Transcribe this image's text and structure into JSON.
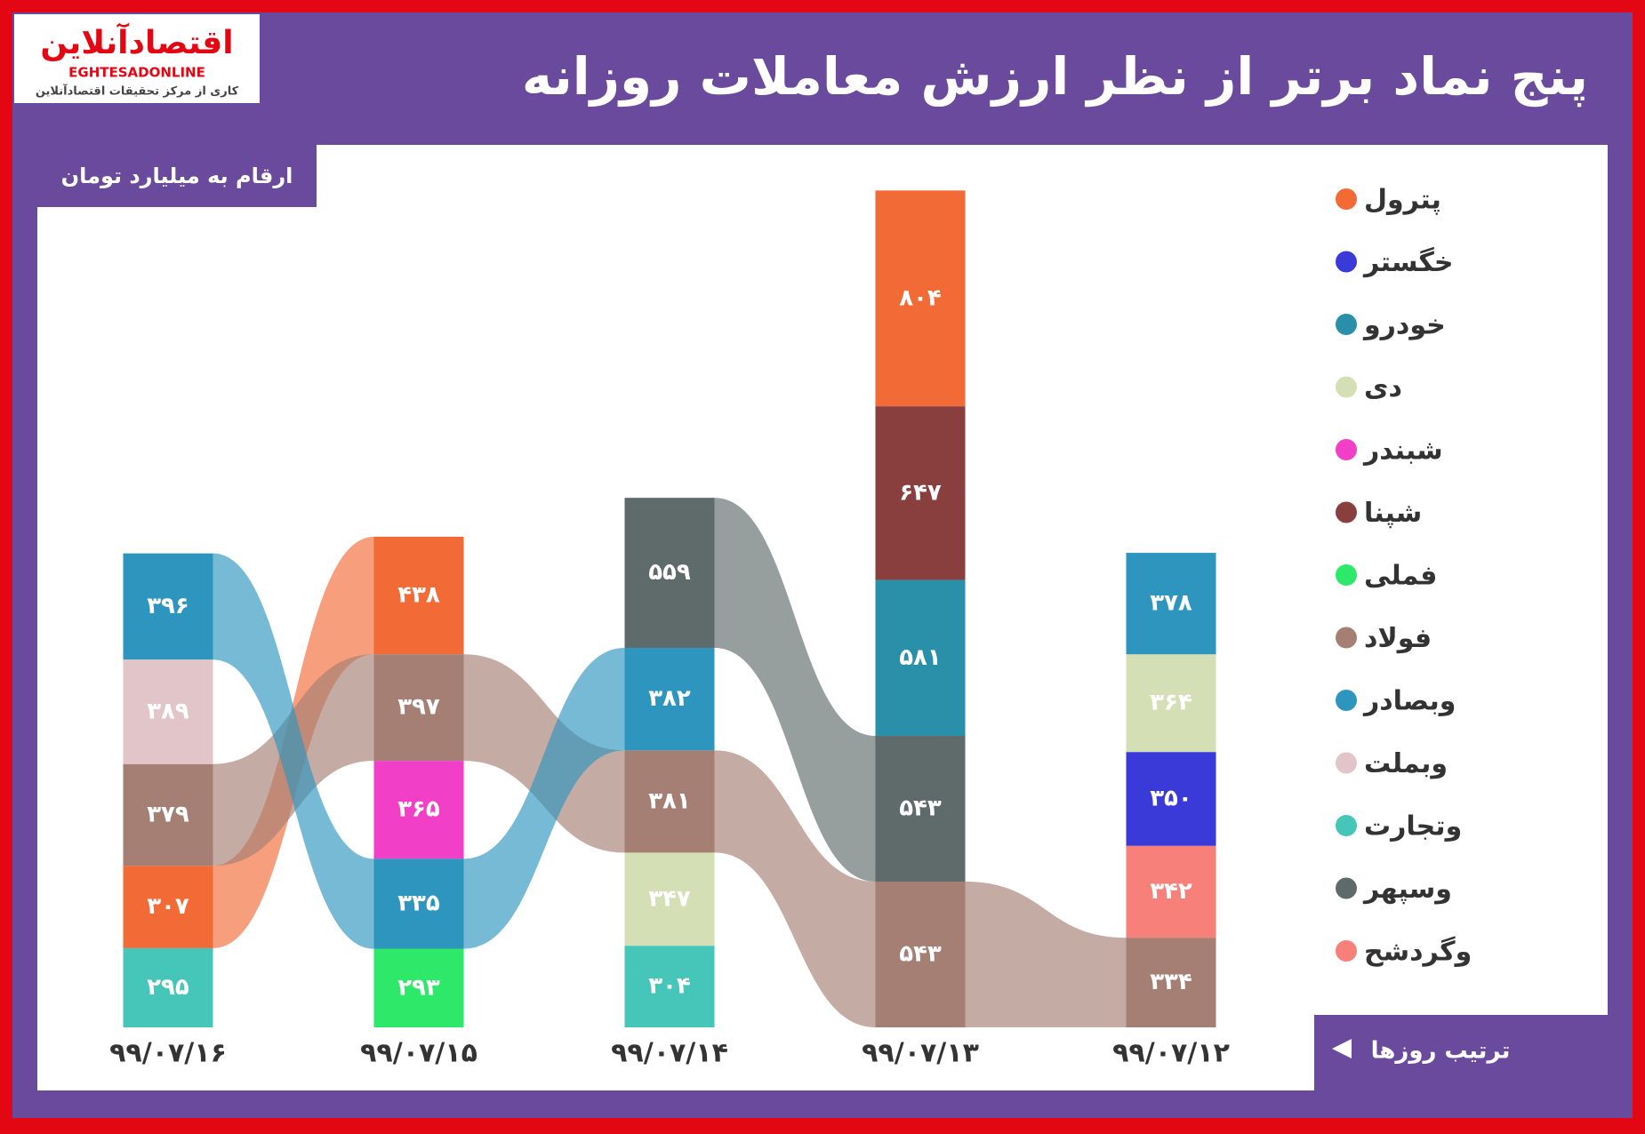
{
  "chart_data": {
    "type": "bar",
    "title": "پنج نماد برتر از نظر ارزش معاملات روزانه",
    "subtitle": "ارقام به میلیارد تومان",
    "annotation": "ترتیب روزها",
    "logo": {
      "name": "اقتصادآنلاین",
      "latin": "EGHTESADONLINE",
      "tagline": "کاری از مرکز تحقیقات اقتصادآنلاین"
    },
    "stacked": true,
    "categories": [
      "۹۹/۰۷/۱۶",
      "۹۹/۰۷/۱۵",
      "۹۹/۰۷/۱۴",
      "۹۹/۰۷/۱۳",
      "۹۹/۰۷/۱۲"
    ],
    "series": [
      {
        "name": "پترول",
        "color": "#f26a35",
        "values": [
          307,
          438,
          null,
          804,
          null
        ],
        "value_labels": [
          "۳۰۷",
          "۴۳۸",
          null,
          "۸۰۴",
          null
        ]
      },
      {
        "name": "خگستر",
        "color": "#3a3ad9",
        "values": [
          null,
          null,
          null,
          null,
          350
        ],
        "value_labels": [
          null,
          null,
          null,
          null,
          "۳۵۰"
        ]
      },
      {
        "name": "خودرو",
        "color": "#2a8fa8",
        "values": [
          null,
          null,
          null,
          581,
          null
        ],
        "value_labels": [
          null,
          null,
          null,
          "۵۸۱",
          null
        ]
      },
      {
        "name": "دی",
        "color": "#d5dfb5",
        "values": [
          null,
          null,
          347,
          null,
          364
        ],
        "value_labels": [
          null,
          null,
          "۳۴۷",
          null,
          "۳۶۴"
        ]
      },
      {
        "name": "شبندر",
        "color": "#f23fc8",
        "values": [
          null,
          365,
          null,
          null,
          null
        ],
        "value_labels": [
          null,
          "۳۶۵",
          null,
          null,
          null
        ]
      },
      {
        "name": "شپنا",
        "color": "#8a3f3f",
        "values": [
          null,
          null,
          null,
          647,
          null
        ],
        "value_labels": [
          null,
          null,
          null,
          "۶۴۷",
          null
        ]
      },
      {
        "name": "فملی",
        "color": "#2ee86a",
        "values": [
          null,
          293,
          null,
          null,
          null
        ],
        "value_labels": [
          null,
          "۲۹۳",
          null,
          null,
          null
        ]
      },
      {
        "name": "فولاد",
        "color": "#a57f73",
        "values": [
          379,
          397,
          381,
          543,
          334
        ],
        "value_labels": [
          "۳۷۹",
          "۳۹۷",
          "۳۸۱",
          "۵۴۳",
          "۳۳۴"
        ]
      },
      {
        "name": "وبصادر",
        "color": "#2e95bf",
        "values": [
          396,
          335,
          382,
          null,
          378
        ],
        "value_labels": [
          "۳۹۶",
          "۳۳۵",
          "۳۸۲",
          null,
          "۳۷۸"
        ]
      },
      {
        "name": "وبملت",
        "color": "#e2c5c8",
        "values": [
          389,
          null,
          null,
          null,
          null
        ],
        "value_labels": [
          "۳۸۹",
          null,
          null,
          null,
          null
        ]
      },
      {
        "name": "وتجارت",
        "color": "#45c6b8",
        "values": [
          295,
          null,
          304,
          null,
          null
        ],
        "value_labels": [
          "۲۹۵",
          null,
          "۳۰۴",
          null,
          null
        ]
      },
      {
        "name": "وسپهر",
        "color": "#5f6a6a",
        "values": [
          null,
          null,
          559,
          543,
          null
        ],
        "value_labels": [
          null,
          null,
          "۵۵۹",
          "۵۴۳",
          null
        ]
      },
      {
        "name": "وگردشح",
        "color": "#f7817a",
        "values": [
          null,
          null,
          null,
          null,
          342
        ],
        "value_labels": [
          null,
          null,
          null,
          null,
          "۳۴۲"
        ]
      }
    ]
  }
}
